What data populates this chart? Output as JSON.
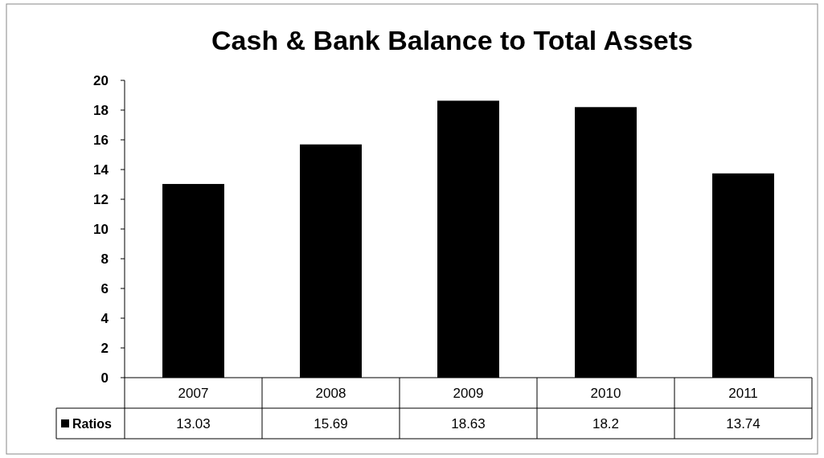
{
  "chart_data": {
    "type": "bar",
    "title": "Cash & Bank Balance to Total Assets",
    "categories": [
      "2007",
      "2008",
      "2009",
      "2010",
      "2011"
    ],
    "series": [
      {
        "name": "Ratios",
        "color": "#000000",
        "values": [
          13.03,
          15.69,
          18.63,
          18.2,
          13.74
        ]
      }
    ],
    "ylim": [
      0,
      20
    ],
    "yticks": [
      0,
      2,
      4,
      6,
      8,
      10,
      12,
      14,
      16,
      18,
      20
    ],
    "grid": false,
    "legend": "bottom",
    "data_labels": true
  }
}
